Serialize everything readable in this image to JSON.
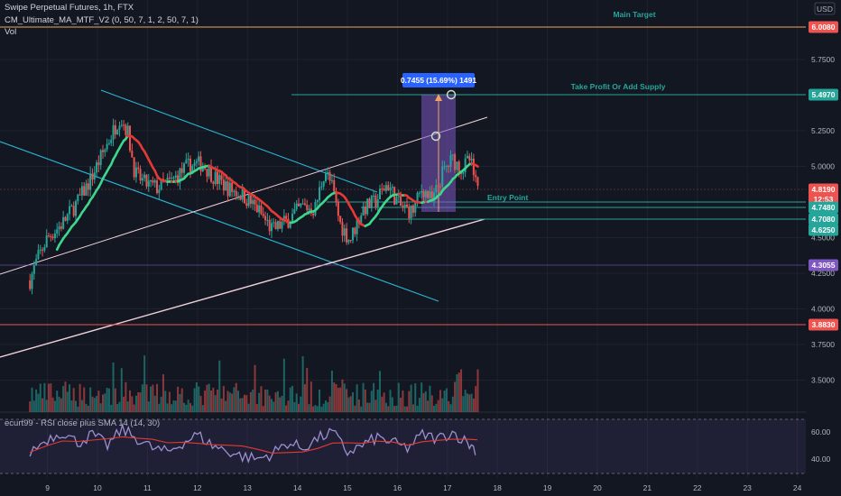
{
  "legend": {
    "title": "Swipe Perpetual Futures, 1h, FTX",
    "indicator": "CM_Ultimate_MA_MTF_V2 (0, 50, 7, 1, 2, 50, 7, 1)",
    "volume": "Vol",
    "rsi": "ecurt99 - RSI close plus SMA 14 (14, 30)"
  },
  "currency": "USD",
  "annotations": {
    "main_target": "Main Target",
    "take_profit": "Take Profit Or Add Supply",
    "entry_point": "Entry Point",
    "measure": "0.7455 (15.69%) 1491"
  },
  "price_tags": {
    "main_target": "6.0080",
    "take_profit": "5.4970",
    "current": "4.8190",
    "countdown": "12:53",
    "level_1": "4.7480",
    "level_2": "4.7080",
    "level_3": "4.6250",
    "purple_level": "4.3055",
    "red_level": "3.8830"
  },
  "colors": {
    "background": "#131722",
    "up": "#26a69a",
    "down": "#ef5350",
    "ma_red": "#e53935",
    "ma_green": "#3dd68c",
    "channel": "#29b6d6",
    "trend": "#f3d1d8",
    "target": "#f0a35e",
    "purple": "#7e57c2",
    "rsi": "#9c8fd1",
    "rsi_sma": "#e53935"
  },
  "chart_data": {
    "type": "line",
    "price_axis": {
      "ticks": [
        "5.7500",
        "5.2500",
        "5.0000",
        "4.5000",
        "4.2500",
        "4.0000",
        "3.7500",
        "3.5000"
      ],
      "tick_values": [
        5.75,
        5.25,
        5.0,
        4.5,
        4.25,
        4.0,
        3.75,
        3.5
      ]
    },
    "time_axis": {
      "ticks": [
        "9",
        "10",
        "11",
        "12",
        "13",
        "14",
        "15",
        "16",
        "17",
        "18",
        "19",
        "20",
        "21",
        "22",
        "23",
        "24"
      ]
    },
    "close_trace": {
      "day": [
        8.65,
        8.8,
        9.0,
        9.3,
        9.6,
        9.85,
        10.05,
        10.25,
        10.45,
        10.6,
        10.75,
        10.95,
        11.2,
        11.5,
        11.8,
        12.1,
        12.35,
        12.6,
        12.9,
        13.2,
        13.5,
        13.8,
        14.1,
        14.35,
        14.55,
        14.7,
        14.85,
        15.05,
        15.3,
        15.55,
        15.8,
        16.05,
        16.3,
        16.5,
        16.7,
        16.9,
        17.1,
        17.3,
        17.45,
        17.6
      ],
      "price": [
        4.2,
        4.35,
        4.5,
        4.6,
        4.75,
        4.9,
        5.05,
        5.2,
        5.35,
        5.25,
        4.95,
        4.88,
        4.85,
        4.9,
        5.0,
        5.02,
        4.92,
        4.85,
        4.8,
        4.7,
        4.55,
        4.62,
        4.72,
        4.7,
        4.98,
        4.85,
        4.6,
        4.48,
        4.7,
        4.75,
        4.88,
        4.72,
        4.68,
        4.85,
        4.75,
        4.95,
        5.05,
        4.98,
        5.05,
        4.82
      ]
    },
    "rsi_axis": {
      "ticks": [
        "60.00",
        "40.00"
      ],
      "tick_values": [
        60,
        40
      ]
    },
    "rsi_trace": {
      "day": [
        8.65,
        9.0,
        9.3,
        9.6,
        9.9,
        10.2,
        10.5,
        10.8,
        11.1,
        11.4,
        11.7,
        12.0,
        12.3,
        12.6,
        12.9,
        13.2,
        13.5,
        13.8,
        14.1,
        14.4,
        14.7,
        15.0,
        15.3,
        15.6,
        15.9,
        16.2,
        16.5,
        16.8,
        17.1,
        17.4,
        17.6
      ],
      "value": [
        45,
        55,
        60,
        52,
        58,
        50,
        62,
        55,
        48,
        45,
        52,
        58,
        50,
        46,
        42,
        40,
        44,
        52,
        48,
        55,
        60,
        45,
        50,
        56,
        52,
        48,
        58,
        55,
        60,
        52,
        46
      ]
    }
  }
}
